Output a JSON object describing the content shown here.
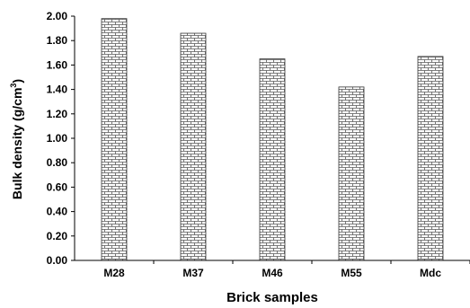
{
  "chart_data": {
    "type": "bar",
    "categories": [
      "M28",
      "M37",
      "M46",
      "M55",
      "Mdc"
    ],
    "values": [
      1.98,
      1.86,
      1.65,
      1.42,
      1.67
    ],
    "xlabel": "Brick samples",
    "ylabel_main": "Bulk density (g/cm",
    "ylabel_sup": "3",
    "ylabel_tail": ")",
    "ylim": [
      0,
      2.0
    ],
    "yticks": [
      "0.00",
      "0.20",
      "0.40",
      "0.60",
      "0.80",
      "1.00",
      "1.20",
      "1.40",
      "1.60",
      "1.80",
      "2.00"
    ],
    "bar_pattern": "brick-hatch",
    "grid": false,
    "legend": "none"
  }
}
